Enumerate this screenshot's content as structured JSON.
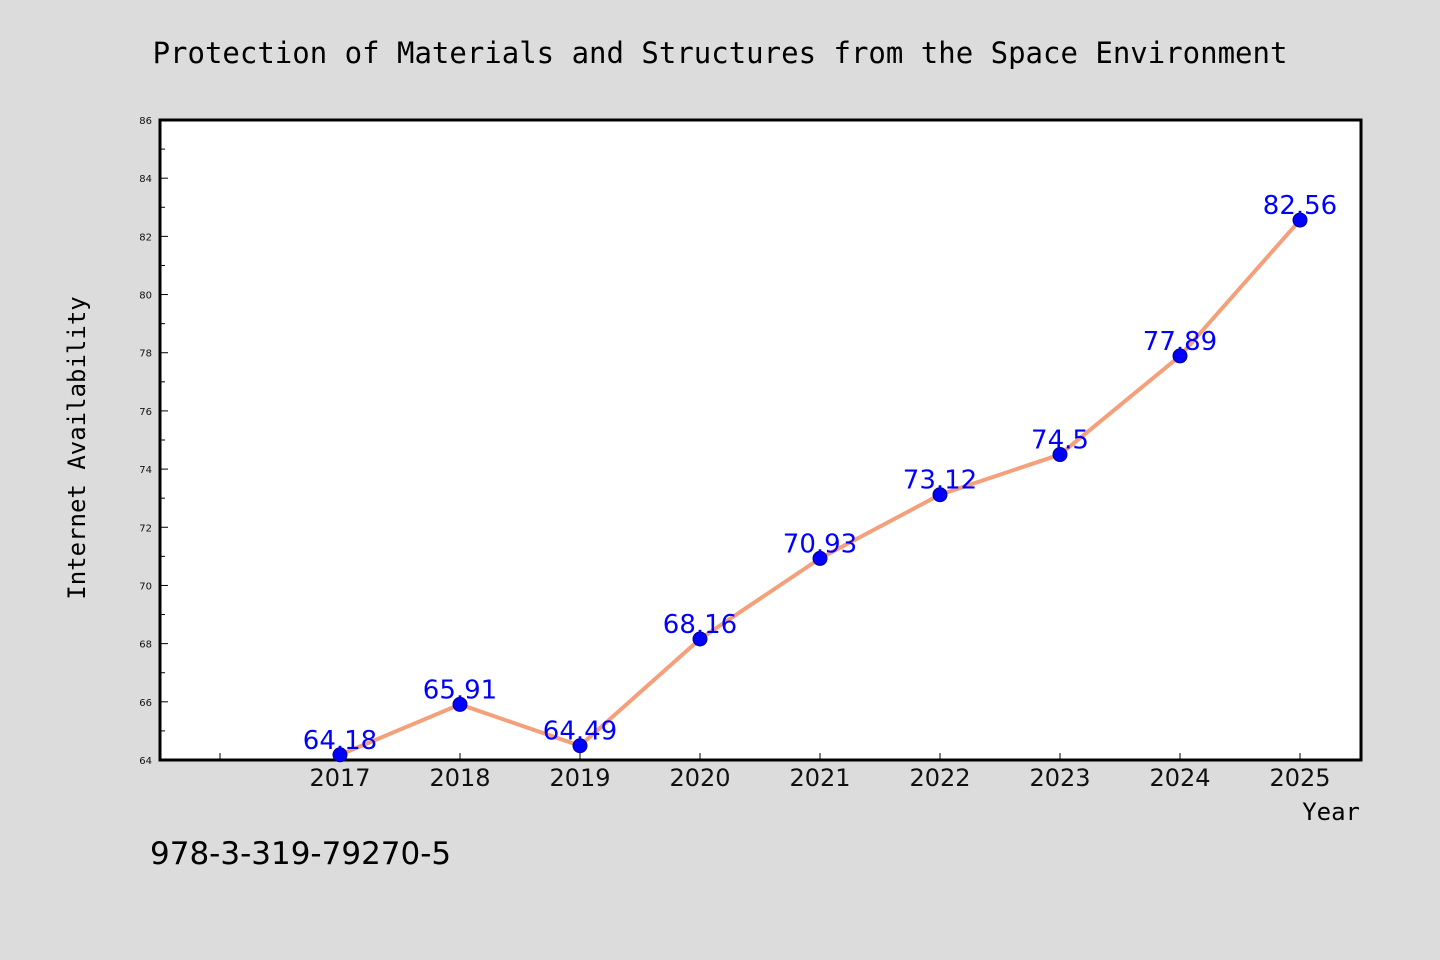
{
  "chart_data": {
    "type": "line",
    "title": "Protection of Materials and Structures from the Space Environment",
    "xlabel": "Year",
    "ylabel": "Internet Availability",
    "categories": [
      "2017",
      "2018",
      "2019",
      "2020",
      "2021",
      "2022",
      "2023",
      "2024",
      "2025"
    ],
    "series": [
      {
        "values": [
          64.18,
          65.91,
          64.49,
          68.16,
          70.93,
          73.12,
          74.5,
          77.89,
          82.56
        ],
        "data_labels": [
          "64.18",
          "65.91",
          "64.49",
          "68.16",
          "70.93",
          "73.12",
          "74.5",
          "77.89",
          "82.56"
        ],
        "line_color": "#f4a07a",
        "marker_color": "#0000ff",
        "label_color": "#0000ff"
      }
    ],
    "ylim": [
      64,
      86
    ],
    "yticks": [
      "64",
      "66",
      "68",
      "70",
      "72",
      "74",
      "76",
      "78",
      "80",
      "82",
      "84",
      "86"
    ],
    "grid": false,
    "legend": "none"
  },
  "footer_text": "978-3-319-79270-5",
  "colors": {
    "background": "#dcdcdc",
    "plot_background": "#ffffff",
    "axis": "#000000"
  }
}
